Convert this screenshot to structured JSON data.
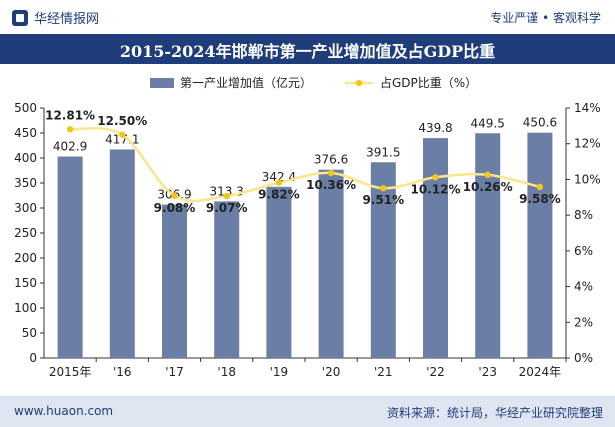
{
  "header": {
    "brand": "华经情报网",
    "tagline": "专业严谨 • 客观科学",
    "title": "2015-2024年邯郸市第一产业增加值及占GDP比重"
  },
  "footer": {
    "url": "www.huaon.com",
    "source": "资料来源：统计局，华经产业研究院整理"
  },
  "chart_data": {
    "type": "bar",
    "categories": [
      "2015年",
      "'16",
      "'17",
      "'18",
      "'19",
      "'20",
      "'21",
      "'22",
      "'23",
      "2024年"
    ],
    "series": [
      {
        "name": "第一产业增加值（亿元）",
        "type": "bar",
        "axis": "left",
        "values": [
          402.9,
          417.1,
          306.9,
          313.3,
          342.4,
          376.6,
          391.5,
          439.8,
          449.5,
          450.6
        ],
        "labels": [
          "402.9",
          "417.1",
          "306.9",
          "313.3",
          "342.4",
          "376.6",
          "391.5",
          "439.8",
          "449.5",
          "450.6"
        ]
      },
      {
        "name": "占GDP比重（%）",
        "type": "line",
        "axis": "right",
        "values": [
          12.81,
          12.5,
          9.08,
          9.07,
          9.82,
          10.36,
          9.51,
          10.12,
          10.26,
          9.58
        ],
        "labels": [
          "12.81%",
          "12.50%",
          "9.08%",
          "9.07%",
          "9.82%",
          "10.36%",
          "9.51%",
          "10.12%",
          "10.26%",
          "9.58%"
        ]
      }
    ],
    "y_left": {
      "min": 0,
      "max": 500,
      "ticks": [
        "0",
        "50",
        "100",
        "150",
        "200",
        "250",
        "300",
        "350",
        "400",
        "450",
        "500"
      ]
    },
    "y_right": {
      "min": 0,
      "max": 14,
      "ticks": [
        "0%",
        "2%",
        "4%",
        "6%",
        "8%",
        "10%",
        "12%",
        "14%"
      ]
    },
    "legend_position": "top-center",
    "grid": false,
    "colors": {
      "bar": "#6b7fa6",
      "line": "#fde68a",
      "dot": "#f5c518",
      "axis": "#333333"
    }
  }
}
